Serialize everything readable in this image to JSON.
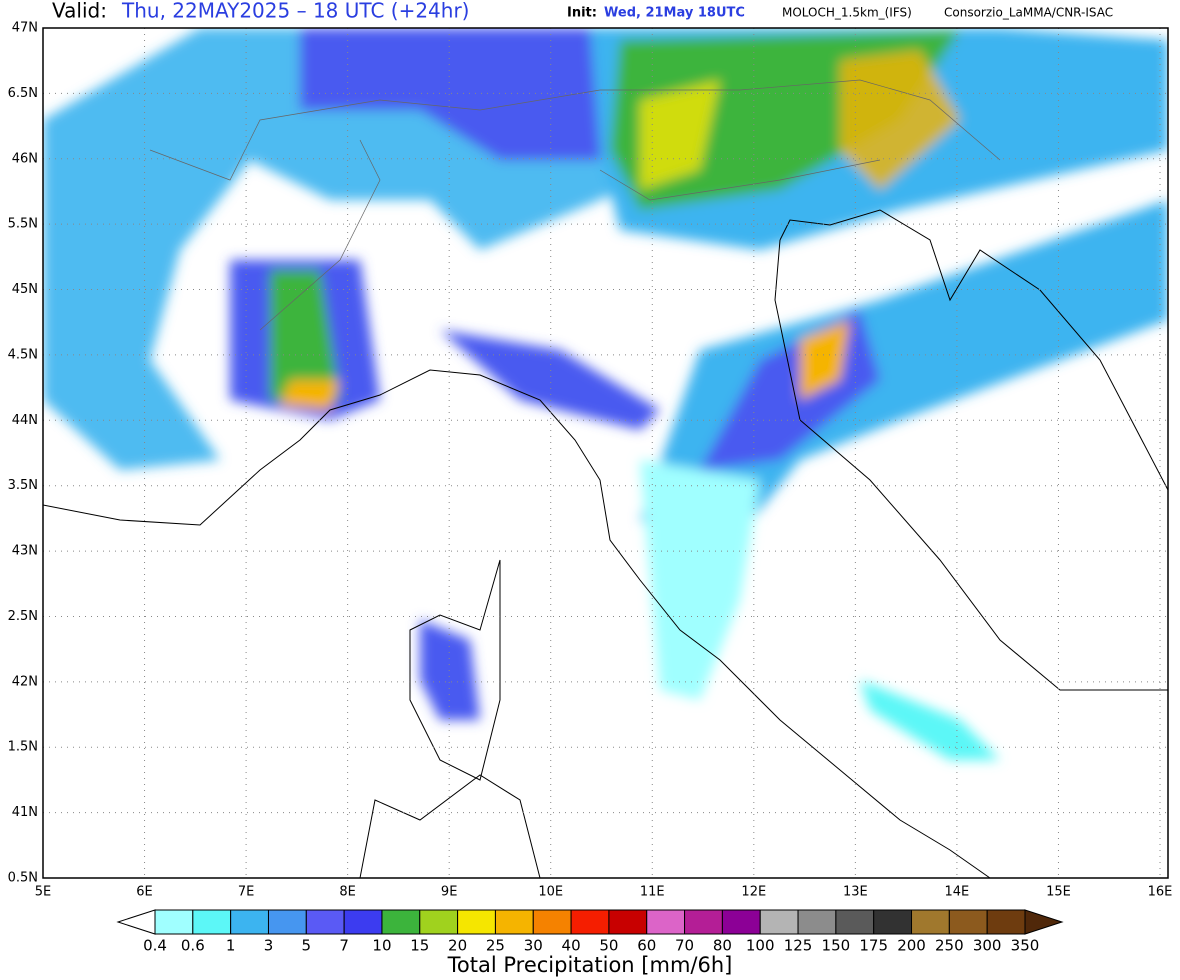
{
  "header": {
    "valid_label": "Valid:",
    "valid_time": "Thu, 22MAY2025 – 18 UTC (+24hr)",
    "init_label": "Init:",
    "init_time": "Wed, 21May 18UTC",
    "model": "MOLOCH_1.5km_(IFS)",
    "credit": "Consorzio_LaMMA/CNR-ISAC"
  },
  "map": {
    "lat_labels": [
      "47N",
      "6.5N",
      "46N",
      "5.5N",
      "45N",
      "4.5N",
      "44N",
      "3.5N",
      "43N",
      "2.5N",
      "42N",
      "1.5N",
      "41N",
      "0.5N"
    ],
    "lon_labels": [
      "5E",
      "6E",
      "7E",
      "8E",
      "9E",
      "10E",
      "11E",
      "12E",
      "13E",
      "14E",
      "15E",
      "16E"
    ]
  },
  "colorbar": {
    "labels": [
      "0.4",
      "0.6",
      "1",
      "3",
      "5",
      "7",
      "10",
      "15",
      "20",
      "25",
      "30",
      "40",
      "50",
      "60",
      "70",
      "80",
      "100",
      "125",
      "150",
      "175",
      "200",
      "250",
      "300",
      "350"
    ],
    "colors": [
      "#a0ffff",
      "#5cf7f7",
      "#3cb4f0",
      "#4696f0",
      "#5a5af5",
      "#3c3cf0",
      "#3cb43c",
      "#a0d21e",
      "#f5e600",
      "#f5b400",
      "#f58200",
      "#f51e00",
      "#c80000",
      "#dc64c8",
      "#b41e96",
      "#8c0096",
      "#b4b4b4",
      "#8c8c8c",
      "#5a5a5a",
      "#323232",
      "#a0782d",
      "#8c5a1e",
      "#6e3c0f"
    ],
    "under_color": "#ffffff",
    "over_color": "#50280a",
    "title": "Total Precipitation [mm/6h]"
  }
}
